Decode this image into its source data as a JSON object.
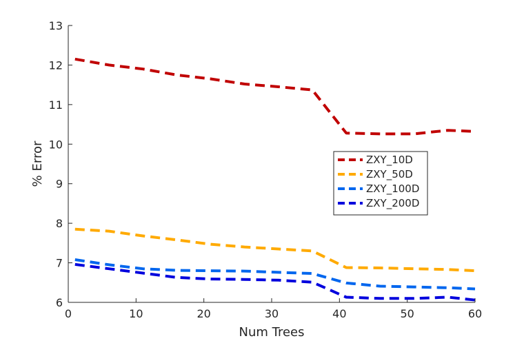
{
  "chart_data": {
    "type": "line",
    "title": "",
    "xlabel": "Num Trees",
    "ylabel": "% Error",
    "xlim": [
      0,
      60
    ],
    "ylim": [
      6,
      13
    ],
    "xticks": [
      0,
      10,
      20,
      30,
      40,
      50,
      60
    ],
    "yticks": [
      6,
      7,
      8,
      9,
      10,
      11,
      12,
      13
    ],
    "grid": false,
    "legend_position": "center-right",
    "x": [
      1,
      6,
      11,
      16,
      21,
      26,
      31,
      36,
      41,
      46,
      51,
      56,
      60
    ],
    "series": [
      {
        "name": "ZXY_10D",
        "color": "#c00000",
        "style": "dashed",
        "values": [
          12.15,
          12.0,
          11.9,
          11.75,
          11.65,
          11.52,
          11.45,
          11.37,
          10.28,
          10.26,
          10.26,
          10.35,
          10.32
        ]
      },
      {
        "name": "ZXY_50D",
        "color": "#ffaa00",
        "style": "dashed",
        "values": [
          7.85,
          7.8,
          7.68,
          7.58,
          7.47,
          7.4,
          7.35,
          7.3,
          6.88,
          6.87,
          6.85,
          6.83,
          6.8
        ]
      },
      {
        "name": "ZXY_100D",
        "color": "#0066ee",
        "style": "dashed",
        "values": [
          7.08,
          6.95,
          6.85,
          6.81,
          6.8,
          6.79,
          6.76,
          6.73,
          6.49,
          6.41,
          6.39,
          6.37,
          6.34
        ]
      },
      {
        "name": "ZXY_200D",
        "color": "#0000dd",
        "style": "dashed",
        "values": [
          6.96,
          6.85,
          6.74,
          6.63,
          6.59,
          6.58,
          6.56,
          6.51,
          6.13,
          6.1,
          6.1,
          6.13,
          6.06
        ]
      }
    ]
  }
}
